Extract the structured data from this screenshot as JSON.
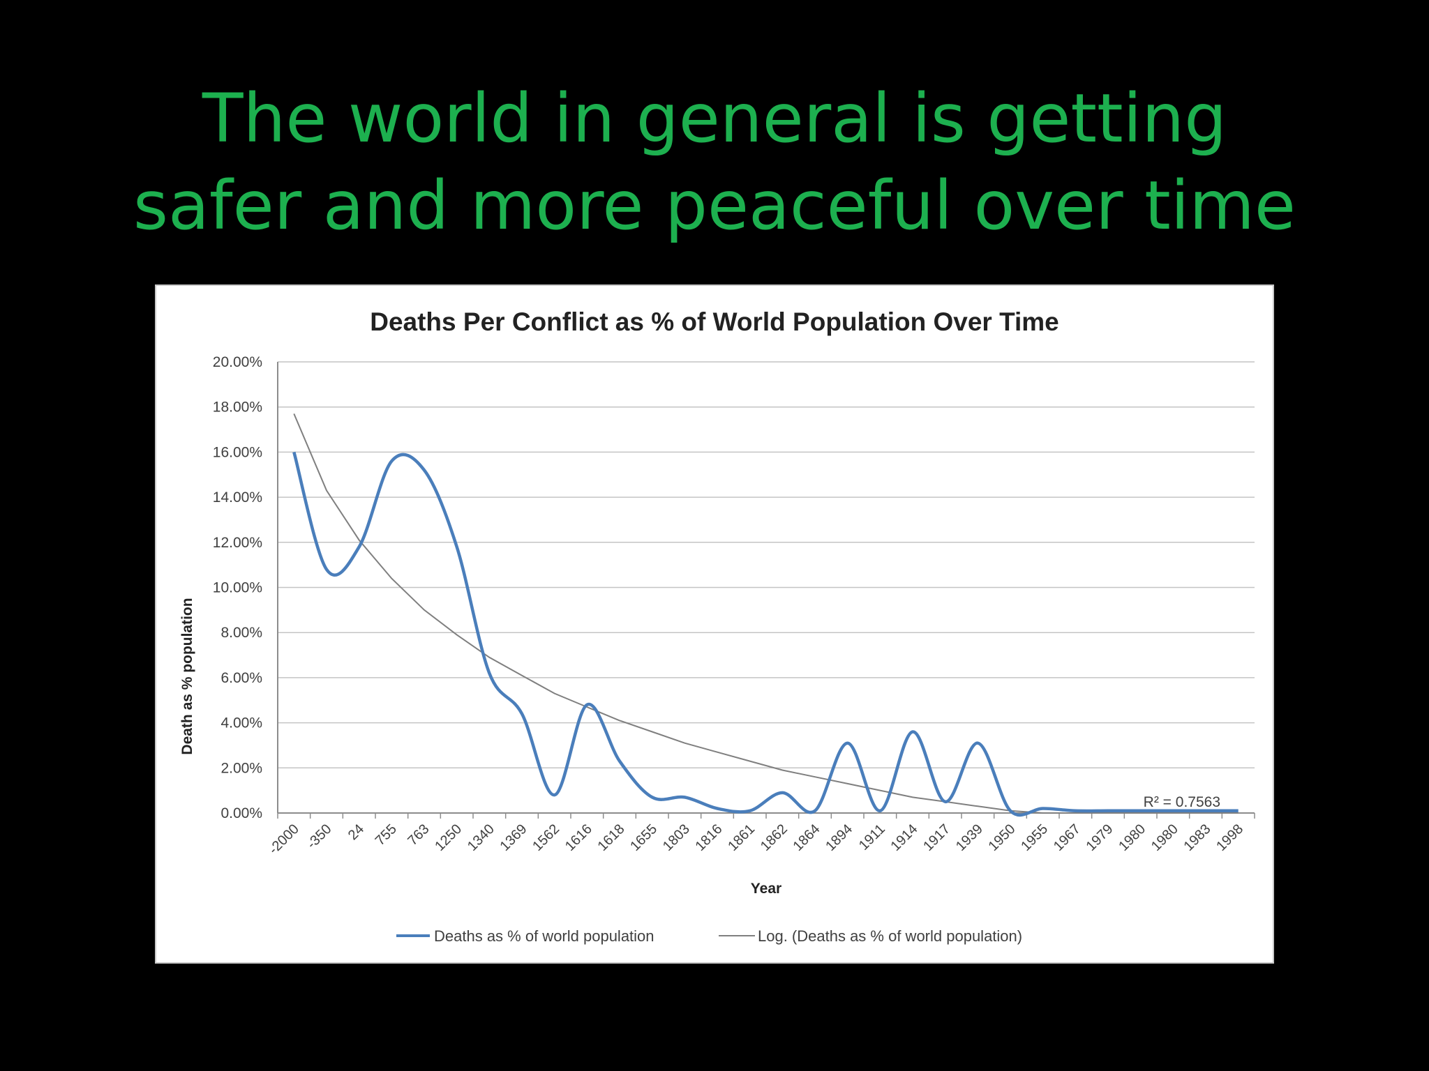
{
  "slide": {
    "title_line1": "The world in general is getting",
    "title_line2": "safer and more peaceful over time",
    "title_color": "#1db04f",
    "background_color": "#000000"
  },
  "chart_data": {
    "type": "line",
    "title": "Deaths Per Conflict as % of World Population Over Time",
    "xlabel": "Year",
    "ylabel": "Death as % population",
    "categories": [
      "-2000",
      "-350",
      "24",
      "755",
      "763",
      "1250",
      "1340",
      "1369",
      "1562",
      "1616",
      "1618",
      "1655",
      "1803",
      "1816",
      "1861",
      "1862",
      "1864",
      "1894",
      "1911",
      "1914",
      "1917",
      "1939",
      "1950",
      "1955",
      "1967",
      "1979",
      "1980",
      "1980",
      "1983",
      "1998"
    ],
    "ylim": [
      0,
      20
    ],
    "yticks": [
      "0.00%",
      "2.00%",
      "4.00%",
      "6.00%",
      "8.00%",
      "10.00%",
      "12.00%",
      "14.00%",
      "16.00%",
      "18.00%",
      "20.00%"
    ],
    "grid": true,
    "legend_position": "bottom",
    "series": [
      {
        "name": "Deaths as % of world population",
        "color": "#4a7ebb",
        "values": [
          16.0,
          10.8,
          11.8,
          15.6,
          15.2,
          11.8,
          6.2,
          4.4,
          0.8,
          4.8,
          2.3,
          0.7,
          0.7,
          0.2,
          0.1,
          0.9,
          0.1,
          3.1,
          0.1,
          3.6,
          0.5,
          3.1,
          0.1,
          0.2,
          0.1,
          0.1,
          0.1,
          0.1,
          0.1,
          0.1
        ]
      },
      {
        "name": "Log. (Deaths as % of world population)",
        "color": "#7f7f7f",
        "trendline": "logarithmic",
        "values": [
          17.7,
          14.3,
          12.1,
          10.4,
          9.0,
          7.9,
          6.9,
          6.1,
          5.3,
          4.7,
          4.1,
          3.6,
          3.1,
          2.7,
          2.3,
          1.9,
          1.6,
          1.3,
          1.0,
          0.7,
          0.5,
          0.3,
          0.1,
          0.0,
          0.0,
          0.0,
          0.0,
          0.0,
          0.0,
          0.0
        ]
      }
    ],
    "annotations": [
      "R² = 0.7563"
    ]
  }
}
